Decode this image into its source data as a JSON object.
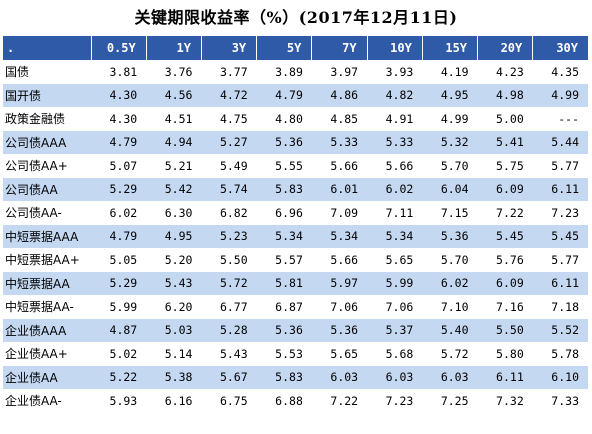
{
  "title": "关键期限收益率（%）(2017年12月11日)",
  "columns": [
    ".",
    "0.5Y",
    "1Y",
    "3Y",
    "5Y",
    "7Y",
    "10Y",
    "15Y",
    "20Y",
    "30Y"
  ],
  "rows": [
    {
      "name": "国债",
      "values": [
        "3.81",
        "3.76",
        "3.77",
        "3.89",
        "3.97",
        "3.93",
        "4.19",
        "4.23",
        "4.35"
      ]
    },
    {
      "name": "国开债",
      "values": [
        "4.30",
        "4.56",
        "4.72",
        "4.79",
        "4.86",
        "4.82",
        "4.95",
        "4.98",
        "4.99"
      ]
    },
    {
      "name": "政策金融债",
      "values": [
        "4.30",
        "4.51",
        "4.75",
        "4.80",
        "4.85",
        "4.91",
        "4.99",
        "5.00",
        "---"
      ]
    },
    {
      "name": "公司债AAA",
      "values": [
        "4.79",
        "4.94",
        "5.27",
        "5.36",
        "5.33",
        "5.33",
        "5.32",
        "5.41",
        "5.44"
      ]
    },
    {
      "name": "公司债AA+",
      "values": [
        "5.07",
        "5.21",
        "5.49",
        "5.55",
        "5.66",
        "5.66",
        "5.70",
        "5.75",
        "5.77"
      ]
    },
    {
      "name": "公司债AA",
      "values": [
        "5.29",
        "5.42",
        "5.74",
        "5.83",
        "6.01",
        "6.02",
        "6.04",
        "6.09",
        "6.11"
      ]
    },
    {
      "name": "公司债AA-",
      "values": [
        "6.02",
        "6.30",
        "6.82",
        "6.96",
        "7.09",
        "7.11",
        "7.15",
        "7.22",
        "7.23"
      ]
    },
    {
      "name": "中短票据AAA",
      "values": [
        "4.79",
        "4.95",
        "5.23",
        "5.34",
        "5.34",
        "5.34",
        "5.36",
        "5.45",
        "5.45"
      ]
    },
    {
      "name": "中短票据AA+",
      "values": [
        "5.05",
        "5.20",
        "5.50",
        "5.57",
        "5.66",
        "5.65",
        "5.70",
        "5.76",
        "5.77"
      ]
    },
    {
      "name": "中短票据AA",
      "values": [
        "5.29",
        "5.43",
        "5.72",
        "5.81",
        "5.97",
        "5.99",
        "6.02",
        "6.09",
        "6.11"
      ]
    },
    {
      "name": "中短票据AA-",
      "values": [
        "5.99",
        "6.20",
        "6.77",
        "6.87",
        "7.06",
        "7.06",
        "7.10",
        "7.16",
        "7.18"
      ]
    },
    {
      "name": "企业债AAA",
      "values": [
        "4.87",
        "5.03",
        "5.28",
        "5.36",
        "5.36",
        "5.37",
        "5.40",
        "5.50",
        "5.52"
      ]
    },
    {
      "name": "企业债AA+",
      "values": [
        "5.02",
        "5.14",
        "5.43",
        "5.53",
        "5.65",
        "5.68",
        "5.72",
        "5.80",
        "5.78"
      ]
    },
    {
      "name": "企业债AA",
      "values": [
        "5.22",
        "5.38",
        "5.67",
        "5.83",
        "6.03",
        "6.03",
        "6.03",
        "6.11",
        "6.10"
      ]
    },
    {
      "name": "企业债AA-",
      "values": [
        "5.93",
        "6.16",
        "6.75",
        "6.88",
        "7.22",
        "7.23",
        "7.25",
        "7.32",
        "7.33"
      ]
    }
  ],
  "colors": {
    "header_bg": "#2e5aa8",
    "header_text": "#ffffff",
    "stripe": "#c5d8f1"
  }
}
